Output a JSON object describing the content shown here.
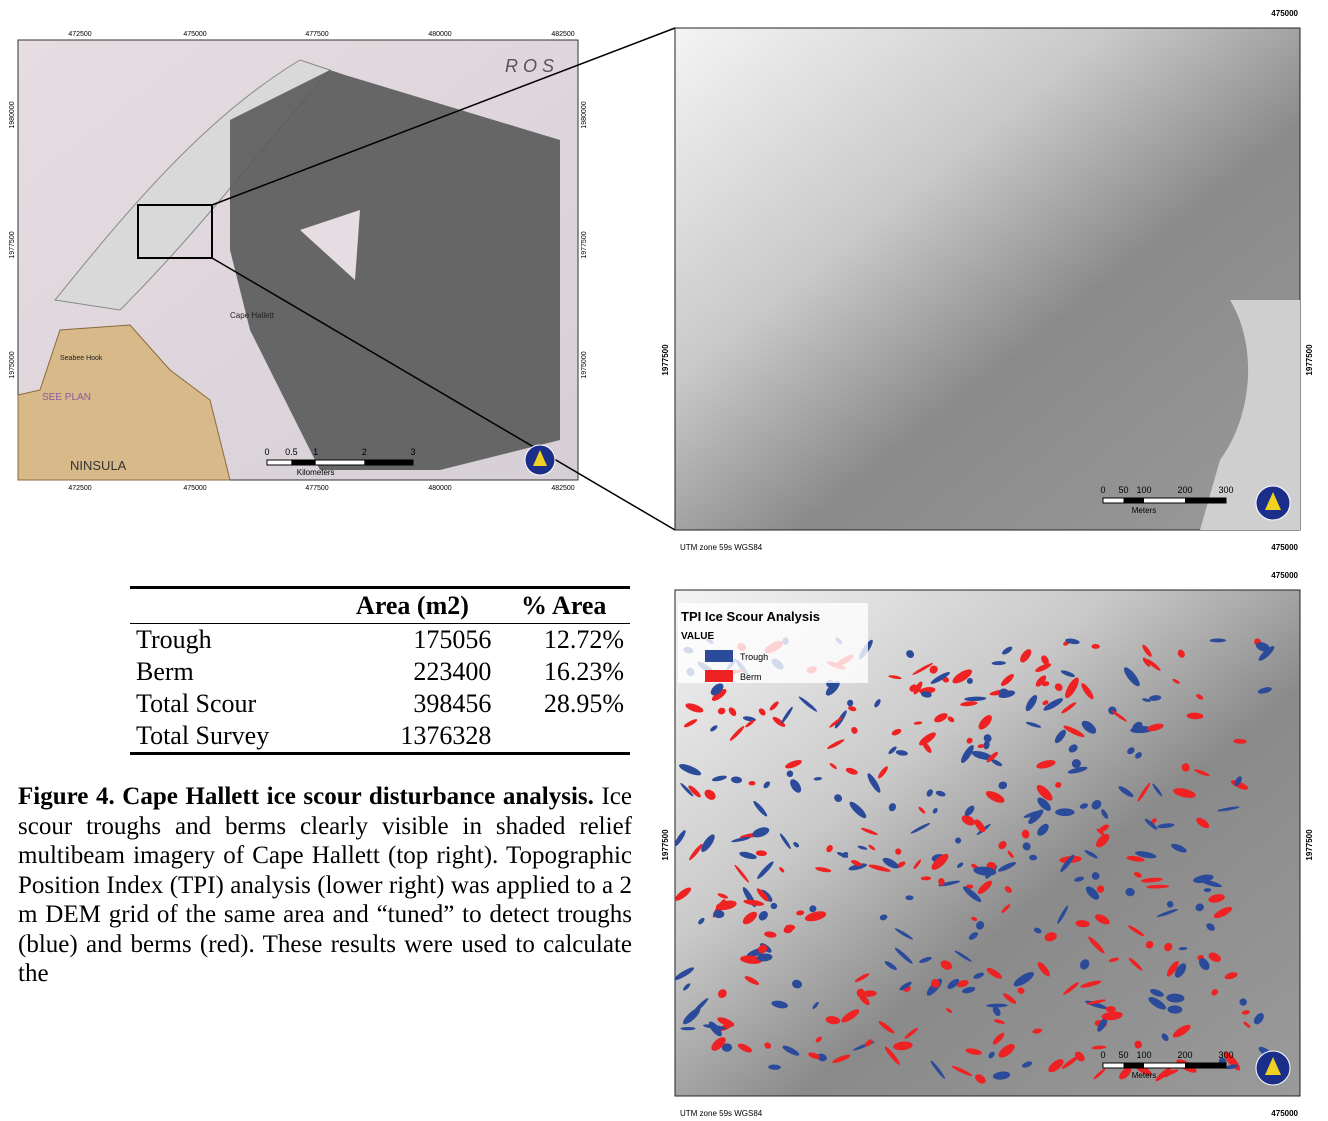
{
  "left_map": {
    "x_ticks": [
      "472500",
      "475000",
      "477500",
      "480000",
      "482500"
    ],
    "y_ticks": [
      "1980000",
      "1977500",
      "1975000"
    ],
    "places": [
      "R O S",
      "Cape Hallett",
      "Seabee Hook",
      "SEE PLAN",
      "NINSULA"
    ],
    "scale_ticks": [
      "0",
      "0.5",
      "1",
      "2",
      "3"
    ],
    "scale_unit": "Kilometers"
  },
  "top_map": {
    "x_tick": "475000",
    "y_tick": "1977500",
    "projection": "UTM zone 59s WGS84",
    "scale_ticks": [
      "0",
      "50",
      "100",
      "200",
      "300"
    ],
    "scale_unit": "Meters"
  },
  "bottom_map": {
    "x_tick": "475000",
    "y_tick": "1977500",
    "projection": "UTM zone 59s WGS84",
    "legend": {
      "title": "TPI Ice Scour Analysis",
      "field": "VALUE",
      "items": [
        "Trough",
        "Berm"
      ]
    },
    "scale_ticks": [
      "0",
      "50",
      "100",
      "200",
      "300"
    ],
    "scale_unit": "Meters"
  },
  "table": {
    "header": [
      "Area (m2)",
      "% Area"
    ],
    "rows": [
      [
        "Trough",
        "175056",
        "12.72%"
      ],
      [
        "Berm",
        "223400",
        "16.23%"
      ],
      [
        "Total Scour",
        "398456",
        "28.95%"
      ],
      [
        "Total Survey",
        "1376328",
        null
      ]
    ]
  },
  "caption": {
    "lead": "Figure 4. Cape Hallett ice scour disturbance analysis.",
    "body": "Ice scour troughs and berms clearly visible in shaded relief multibeam imagery of Cape Hallett (top right). Topographic Position Index (TPI) analysis (lower right) was applied to a 2 m DEM grid of the same area and “tuned” to detect troughs (blue) and berms (red). These results were used to calculate the"
  }
}
